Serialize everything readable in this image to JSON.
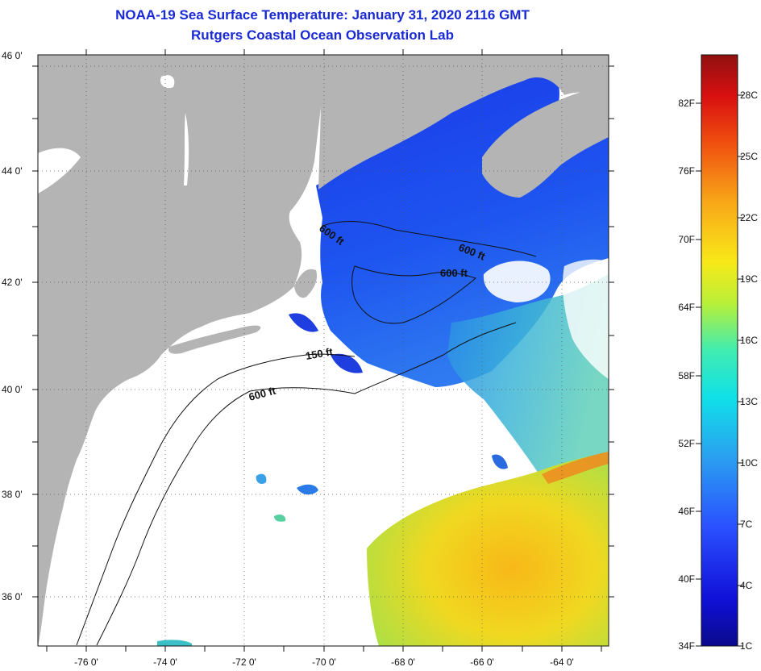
{
  "title": {
    "line1": "NOAA-19 Sea Surface Temperature:  January 31, 2020 2116 GMT",
    "line2": "Rutgers Coastal Ocean Observation Lab"
  },
  "latitude_labels": [
    "46 0'",
    "44 0'",
    "42 0'",
    "40 0'",
    "38 0'",
    "36 0'"
  ],
  "longitude_labels": [
    "-76 0'",
    "-74 0'",
    "-72 0'",
    "-70 0'",
    "-68 0'",
    "-66 0'",
    "-64 0'"
  ],
  "contour_labels": [
    "600 ft",
    "600 ft",
    "600 ft",
    "150 ft",
    "600 ft"
  ],
  "colorbar": {
    "fahrenheit_labels": [
      "82F",
      "76F",
      "70F",
      "64F",
      "58F",
      "52F",
      "46F",
      "40F",
      "34F"
    ],
    "celsius_labels": [
      "28C",
      "25C",
      "22C",
      "19C",
      "16C",
      "13C",
      "10C",
      "7C",
      "4C",
      "1C"
    ]
  },
  "colors": {
    "land": "#b4b4b4",
    "no_data": "#ffffff",
    "title": "#1a2ad4",
    "cold_water": "#1f3ee8",
    "warm_water": "#f5c21a"
  }
}
